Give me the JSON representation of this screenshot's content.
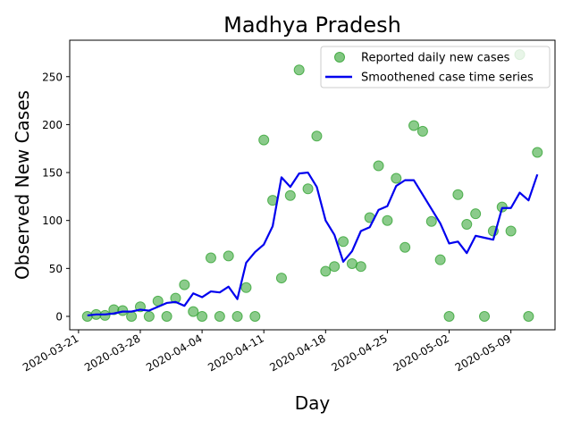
{
  "chart_data": {
    "type": "scatter",
    "title": "Madhya Pradesh",
    "xlabel": "Day",
    "ylabel": "Observed New Cases",
    "x_start_date": "2020-03-21",
    "xlim": [
      "2020-03-20",
      "2020-05-14"
    ],
    "ylim": [
      -14,
      288
    ],
    "x_ticks": [
      "2020-03-21",
      "2020-03-28",
      "2020-04-04",
      "2020-04-11",
      "2020-04-18",
      "2020-04-25",
      "2020-05-02",
      "2020-05-09"
    ],
    "y_ticks": [
      0,
      50,
      100,
      150,
      200,
      250
    ],
    "grid": false,
    "legend_position": "top-right",
    "series": [
      {
        "name": "Reported daily new cases",
        "kind": "markers",
        "color": "#2ca02c",
        "dates": [
          "2020-03-22",
          "2020-03-23",
          "2020-03-24",
          "2020-03-25",
          "2020-03-26",
          "2020-03-27",
          "2020-03-28",
          "2020-03-29",
          "2020-03-30",
          "2020-03-31",
          "2020-04-01",
          "2020-04-02",
          "2020-04-03",
          "2020-04-04",
          "2020-04-05",
          "2020-04-06",
          "2020-04-07",
          "2020-04-08",
          "2020-04-09",
          "2020-04-10",
          "2020-04-11",
          "2020-04-12",
          "2020-04-13",
          "2020-04-14",
          "2020-04-15",
          "2020-04-16",
          "2020-04-17",
          "2020-04-18",
          "2020-04-19",
          "2020-04-20",
          "2020-04-21",
          "2020-04-22",
          "2020-04-23",
          "2020-04-24",
          "2020-04-25",
          "2020-04-26",
          "2020-04-27",
          "2020-04-28",
          "2020-04-29",
          "2020-04-30",
          "2020-05-01",
          "2020-05-02",
          "2020-05-03",
          "2020-05-04",
          "2020-05-05",
          "2020-05-06",
          "2020-05-07",
          "2020-05-08",
          "2020-05-09",
          "2020-05-10",
          "2020-05-11",
          "2020-05-12"
        ],
        "values": [
          0,
          2,
          1,
          7,
          6,
          0,
          10,
          0,
          16,
          0,
          19,
          33,
          5,
          0,
          61,
          0,
          63,
          0,
          30,
          0,
          184,
          121,
          40,
          126,
          257,
          133,
          188,
          47,
          52,
          78,
          55,
          52,
          103,
          157,
          100,
          144,
          72,
          199,
          193,
          99,
          59,
          0,
          127,
          96,
          107,
          0,
          89,
          114,
          89,
          273,
          0,
          171
        ]
      },
      {
        "name": "Smoothened case time series",
        "kind": "line",
        "color": "#0000ee",
        "dates": [
          "2020-03-22",
          "2020-03-23",
          "2020-03-24",
          "2020-03-25",
          "2020-03-26",
          "2020-03-27",
          "2020-03-28",
          "2020-03-29",
          "2020-03-30",
          "2020-03-31",
          "2020-04-01",
          "2020-04-02",
          "2020-04-03",
          "2020-04-04",
          "2020-04-05",
          "2020-04-06",
          "2020-04-07",
          "2020-04-08",
          "2020-04-09",
          "2020-04-10",
          "2020-04-11",
          "2020-04-12",
          "2020-04-13",
          "2020-04-14",
          "2020-04-15",
          "2020-04-16",
          "2020-04-17",
          "2020-04-18",
          "2020-04-19",
          "2020-04-20",
          "2020-04-21",
          "2020-04-22",
          "2020-04-23",
          "2020-04-24",
          "2020-04-25",
          "2020-04-26",
          "2020-04-27",
          "2020-04-28",
          "2020-04-29",
          "2020-04-30",
          "2020-05-01",
          "2020-05-02",
          "2020-05-03",
          "2020-05-04",
          "2020-05-05",
          "2020-05-06",
          "2020-05-07",
          "2020-05-08",
          "2020-05-09",
          "2020-05-10",
          "2020-05-11",
          "2020-05-12"
        ],
        "values": [
          1,
          2,
          2,
          3,
          5,
          5,
          7,
          6,
          10,
          14,
          15,
          11,
          24,
          20,
          26,
          25,
          31,
          18,
          56,
          67,
          75,
          94,
          145,
          135,
          149,
          150,
          135,
          100,
          85,
          57,
          68,
          89,
          93,
          111,
          115,
          136,
          142,
          142,
          127,
          112,
          97,
          76,
          78,
          66,
          84,
          82,
          80,
          113,
          113,
          129,
          121,
          148
        ]
      }
    ]
  }
}
